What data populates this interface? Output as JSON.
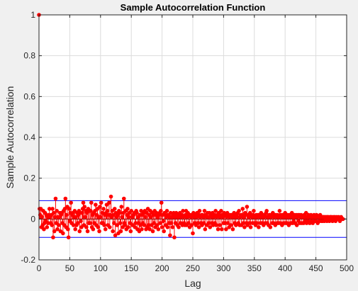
{
  "chart_data": {
    "type": "stem",
    "title": "Sample Autocorrelation Function",
    "xlabel": "Lag",
    "ylabel": "Sample Autocorrelation",
    "xlim": [
      0,
      500
    ],
    "ylim": [
      -0.2,
      1
    ],
    "xticks": [
      0,
      50,
      100,
      150,
      200,
      250,
      300,
      350,
      400,
      450,
      500
    ],
    "yticks": [
      -0.2,
      0,
      0.2,
      0.4,
      0.6,
      0.8,
      1
    ],
    "grid": true,
    "confidence_bounds": [
      0.09,
      -0.09
    ],
    "acf": [
      1,
      0.05,
      0.02,
      0.05,
      -0.04,
      0.01,
      -0.03,
      0.04,
      -0.05,
      -0.02,
      0.03,
      -0.01,
      0.02,
      -0.04,
      0.01,
      -0.02,
      0.02,
      0.05,
      0.01,
      -0.02,
      0.02,
      -0.03,
      0.05,
      -0.09,
      0.03,
      -0.06,
      0.01,
      0.1,
      -0.02,
      0.04,
      -0.05,
      0.01,
      -0.03,
      0.01,
      0.03,
      -0.06,
      0.02,
      0.03,
      -0.02,
      -0.07,
      0.04,
      -0.03,
      0.05,
      0.1,
      -0.04,
      0.02,
      0.06,
      -0.05,
      -0.09,
      0.05,
      -0.01,
      0.03,
      0.08,
      -0.02,
      0.02,
      0.03,
      -0.03,
      0.01,
      0.04,
      -0.05,
      0.01,
      -0.03,
      0.03,
      -0.02,
      0.02,
      0.04,
      -0.06,
      0.03,
      -0.01,
      -0.04,
      0.03,
      0.05,
      0.08,
      -0.03,
      0.06,
      0.01,
      0.04,
      -0.04,
      0.03,
      -0.06,
      0.05,
      -0.02,
      0.04,
      -0.02,
      0.04,
      0.08,
      -0.04,
      0.02,
      -0.05,
      0.03,
      -0.02,
      0.04,
      0.07,
      -0.03,
      0.02,
      0.05,
      -0.04,
      0.01,
      -0.06,
      0.06,
      0.01,
      0.08,
      -0.02,
      0.03,
      -0.02,
      0.05,
      -0.03,
      0.02,
      -0.05,
      0.03,
      0.07,
      0.04,
      -0.03,
      0.02,
      0.08,
      -0.04,
      0.02,
      0.11,
      0.01,
      0.04,
      -0.06,
      0.02,
      -0.02,
      0.05,
      -0.08,
      0.03,
      0.01,
      -0.03,
      0.02,
      -0.07,
      0.04,
      0.03,
      -0.02,
      -0.06,
      0.06,
      0.01,
      -0.04,
      0.03,
      0.1,
      -0.02,
      -0.03,
      0.04,
      -0.05,
      0.02,
      0.05,
      -0.04,
      0.01,
      0.03,
      -0.02,
      -0.06,
      0.04,
      0.01,
      -0.03,
      0.02,
      0.02,
      0.03,
      -0.04,
      -0.02,
      0.04,
      0.03,
      -0.05,
      0.01,
      -0.02,
      -0.06,
      0.02,
      -0.03,
      0.04,
      -0.05,
      0.02,
      -0.02,
      0.03,
      -0.03,
      0.04,
      0.01,
      -0.05,
      0.03,
      -0.04,
      0.05,
      -0.03,
      0.02,
      -0.05,
      0.04,
      0.01,
      -0.03,
      0.03,
      -0.06,
      0.02,
      -0.02,
      0.04,
      -0.04,
      0.02,
      0.03,
      -0.03,
      0.01,
      -0.05,
      0.02,
      0.03,
      -0.02,
      0.04,
      0.08,
      -0.04,
      0.02,
      -0.01,
      -0.06,
      0.03,
      0.02,
      -0.03,
      0.01,
      0.04,
      -0.04,
      0.02,
      -0.02,
      0.01,
      -0.08,
      0.03,
      -0.02,
      0.01,
      -0.04,
      0.02,
      0.03,
      -0.09,
      0.01,
      -0.02,
      0.03,
      0.02,
      -0.03,
      0.01,
      -0.04,
      0.02,
      0.03,
      -0.02,
      0.01,
      0.02,
      -0.03,
      0.04,
      0.01,
      -0.02,
      -0.03,
      0.02,
      0.04,
      -0.03,
      0.01,
      0.03,
      -0.02,
      0.02,
      -0.04,
      0.02,
      0.01,
      -0.03,
      0.02,
      -0.07,
      0.03,
      0.01,
      -0.02,
      0.02,
      -0.03,
      0.01,
      0.03,
      -0.02,
      0.02,
      -0.04,
      0.04,
      0.01,
      -0.02,
      0.02,
      -0.03,
      0.02,
      0.01,
      -0.02,
      0.04,
      -0.05,
      0.02,
      0.01,
      -0.03,
      0.03,
      0.01,
      -0.02,
      0.03,
      -0.04,
      0.02,
      0.01,
      -0.02,
      0.03,
      -0.03,
      0.01,
      0.02,
      -0.02,
      0.04,
      -0.03,
      0.01,
      0.02,
      -0.05,
      0.03,
      0.02,
      -0.03,
      0.01,
      0.04,
      -0.05,
      0.02,
      0.01,
      -0.02,
      0.03,
      -0.02,
      0.02,
      -0.05,
      0.01,
      0.03,
      -0.02,
      0.02,
      -0.04,
      0.01,
      0.02,
      -0.03,
      0.02,
      0.01,
      -0.05,
      0.02,
      0.03,
      -0.02,
      0.01,
      -0.03,
      0.02,
      0.01,
      0.03,
      -0.02,
      0.04,
      -0.03,
      0.01,
      0.02,
      -0.03,
      0.02,
      0.05,
      -0.02,
      0.01,
      -0.04,
      0.03,
      0.02,
      -0.02,
      0.06,
      -0.03,
      0.02,
      0.01,
      -0.02,
      0.03,
      -0.04,
      0.02,
      0.01,
      -0.02,
      0.02,
      0.04,
      -0.02,
      0.01,
      -0.03,
      0.02,
      -0.02,
      0.01,
      0.02,
      -0.04,
      0.02,
      0.01,
      -0.02,
      0.03,
      0.01,
      -0.02,
      0.02,
      -0.03,
      0.01,
      0.02,
      -0.02,
      0.03,
      0.04,
      -0.02,
      0.01,
      -0.03,
      0.02,
      0.02,
      -0.04,
      0.01,
      0.02,
      -0.02,
      0.03,
      -0.02,
      0.01,
      0.02,
      -0.03,
      0.02,
      0.01,
      -0.02,
      0.02,
      -0.02,
      0.01,
      0.04,
      -0.02,
      0.02,
      0.01,
      -0.03,
      0.02,
      0.01,
      -0.02,
      0.02,
      0.03,
      -0.02,
      0.01,
      -0.02,
      0.02,
      0.01,
      -0.03,
      0.02,
      0.01,
      -0.02,
      0.02,
      0.03,
      -0.02,
      0.01,
      -0.01,
      0.02,
      -0.02,
      0.01,
      0.02,
      -0.03,
      0.01,
      0.02,
      -0.01,
      0.02,
      -0.02,
      0.01,
      0.02,
      -0.02,
      0.01,
      0.01,
      -0.02,
      0.02,
      -0.01,
      0.01,
      0.03,
      -0.02,
      0.01,
      -0.01,
      0.02,
      0.01,
      -0.02,
      0.01,
      0.02,
      -0.01,
      0.01,
      -0.02,
      0.01,
      0.02,
      -0.01,
      0.01,
      -0.01,
      0.02,
      0.01,
      -0.02,
      0.01,
      0.01,
      -0.01,
      0.02,
      0.01,
      -0.01,
      0.01,
      -0.01,
      0.01,
      0.01,
      -0.01,
      0.01,
      0,
      0.01,
      -0.01,
      0.01,
      0.01,
      0,
      -0.01,
      0.01,
      0.01,
      0,
      0.01,
      -0.01,
      0,
      0.01,
      0,
      0.01,
      -0.01,
      0,
      0.01,
      0,
      0,
      0.01,
      0,
      -0.01,
      0,
      0.01,
      0,
      0,
      0
    ]
  },
  "colors": {
    "stem": "#ff0000",
    "bounds": "#0000ff",
    "grid": "#dcdcdc",
    "axes_bg": "#ffffff",
    "figure_bg": "#f0f0f0"
  }
}
